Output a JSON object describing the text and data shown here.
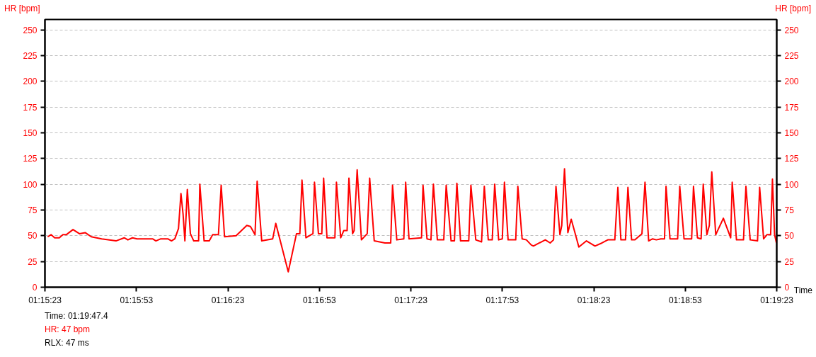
{
  "chart_data": {
    "type": "line",
    "xlabel": "Time",
    "ylabel": "HR [bpm]",
    "y2label": "HR [bpm]",
    "x": [
      4523.9,
      4525.0,
      4526.2,
      4527.7,
      4528.9,
      4530.0,
      4532.2,
      4534.3,
      4536.2,
      4538.2,
      4541.6,
      4546.3,
      4549.0,
      4550.2,
      4551.7,
      4553.2,
      4554.8,
      4558.3,
      4559.4,
      4561.0,
      4563.3,
      4564.5,
      4565.6,
      4566.8,
      4567.6,
      4568.3,
      4568.9,
      4569.7,
      4570.7,
      4571.8,
      4573.4,
      4573.8,
      4575.2,
      4576.9,
      4578.0,
      4579.9,
      4580.8,
      4581.9,
      4585.7,
      4589.2,
      4590.4,
      4591.9,
      4592.6,
      4594.1,
      4597.7,
      4598.7,
      4602.8,
      4605.5,
      4606.6,
      4607.3,
      4608.6,
      4610.9,
      4611.4,
      4612.7,
      4613.8,
      4614.4,
      4615.5,
      4618.1,
      4618.6,
      4620.0,
      4621.0,
      4622.1,
      4622.7,
      4623.9,
      4624.4,
      4625.4,
      4626.8,
      4628.7,
      4629.5,
      4631.0,
      4634.5,
      4636.4,
      4637.0,
      4638.4,
      4640.7,
      4641.3,
      4642.4,
      4646.5,
      4647.0,
      4648.3,
      4649.6,
      4650.4,
      4651.7,
      4653.8,
      4654.6,
      4656.2,
      4657.3,
      4658.1,
      4659.3,
      4662.0,
      4662.7,
      4664.3,
      4666.2,
      4667.1,
      4668.4,
      4669.7,
      4670.5,
      4671.8,
      4673.0,
      4673.7,
      4674.9,
      4677.4,
      4678.1,
      4679.5,
      4680.9,
      4682.5,
      4683.2,
      4687.1,
      4688.7,
      4689.8,
      4690.6,
      4691.9,
      4692.5,
      4693.4,
      4694.5,
      4695.6,
      4697.0,
      4698.1,
      4700.6,
      4703.4,
      4705.7,
      4707.6,
      4709.9,
      4710.9,
      4711.9,
      4713.4,
      4714.2,
      4715.4,
      4716.5,
      4718.8,
      4719.8,
      4721.0,
      4722.3,
      4723.5,
      4725.0,
      4726.2,
      4726.7,
      4728.0,
      4730.5,
      4731.2,
      4732.6,
      4735.1,
      4735.7,
      4737.0,
      4738.2,
      4738.9,
      4740.1,
      4740.9,
      4741.7,
      4743.0,
      4745.5,
      4747.9,
      4748.4,
      4749.8,
      4752.1,
      4752.9,
      4754.3,
      4756.7,
      4757.4,
      4758.7,
      4759.8,
      4761.0,
      4761.6,
      4762.3,
      4762.9
    ],
    "values": [
      49,
      51,
      48,
      48,
      51,
      51,
      56,
      52,
      53,
      49,
      47,
      45,
      48,
      46,
      48,
      47,
      47,
      47,
      45,
      47,
      47,
      45,
      47,
      57,
      91,
      71,
      45,
      95,
      52,
      45,
      45,
      100,
      45,
      45,
      51,
      51,
      99,
      49,
      50,
      60,
      59,
      51,
      103,
      45,
      47,
      62,
      15,
      52,
      52,
      104,
      48,
      52,
      102,
      52,
      52,
      106,
      48,
      48,
      102,
      48,
      55,
      55,
      106,
      52,
      55,
      114,
      46,
      52,
      106,
      45,
      43,
      43,
      99,
      46,
      47,
      102,
      47,
      48,
      99,
      47,
      46,
      100,
      46,
      46,
      99,
      45,
      45,
      101,
      45,
      45,
      99,
      46,
      44,
      98,
      46,
      46,
      100,
      46,
      47,
      102,
      46,
      46,
      98,
      47,
      46,
      41,
      40,
      46,
      43,
      46,
      98,
      51,
      60,
      115,
      53,
      66,
      51,
      39,
      45,
      40,
      43,
      46,
      46,
      97,
      46,
      46,
      97,
      46,
      46,
      52,
      102,
      45,
      47,
      46,
      47,
      47,
      98,
      47,
      47,
      98,
      47,
      47,
      98,
      48,
      47,
      100,
      51,
      60,
      112,
      51,
      67,
      48,
      102,
      46,
      46,
      98,
      46,
      45,
      97,
      47,
      51,
      51,
      105,
      51,
      43
    ],
    "color": "#ff0000",
    "marker": "none",
    "line_style": "solid",
    "grid": "y",
    "xlim": [
      4523,
      4763
    ],
    "xticks": [
      {
        "value": 4523,
        "label": "01:15:23"
      },
      {
        "value": 4553,
        "label": "01:15:53"
      },
      {
        "value": 4583,
        "label": "01:16:23"
      },
      {
        "value": 4613,
        "label": "01:16:53"
      },
      {
        "value": 4643,
        "label": "01:17:23"
      },
      {
        "value": 4673,
        "label": "01:17:53"
      },
      {
        "value": 4703,
        "label": "01:18:23"
      },
      {
        "value": 4733,
        "label": "01:18:53"
      },
      {
        "value": 4763,
        "label": "01:19:23"
      }
    ],
    "ylim": [
      0,
      260
    ],
    "yticks": [
      0,
      25,
      50,
      75,
      100,
      125,
      150,
      175,
      200,
      225,
      250
    ],
    "y2lim": [
      0,
      260
    ],
    "y2ticks": [
      0,
      25,
      50,
      75,
      100,
      125,
      150,
      175,
      200,
      225,
      250
    ],
    "annotations": [
      "Time: 01:19:47.4",
      "HR: 47 bpm",
      "RLX: 47 ms"
    ]
  }
}
